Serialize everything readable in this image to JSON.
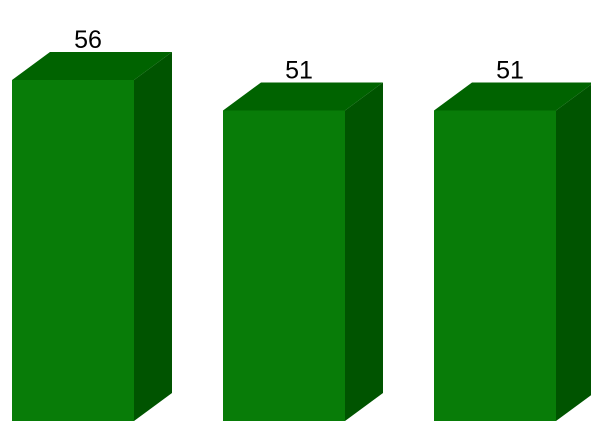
{
  "chart_data": {
    "type": "bar",
    "style": "3d-column",
    "values": [
      56,
      51,
      51
    ],
    "data_labels": [
      "56",
      "51",
      "51"
    ],
    "ylim": [
      0,
      56
    ],
    "grid": false,
    "legend": "none",
    "colors": {
      "front": "#087c08",
      "side": "#005400",
      "top": "#006300"
    }
  }
}
